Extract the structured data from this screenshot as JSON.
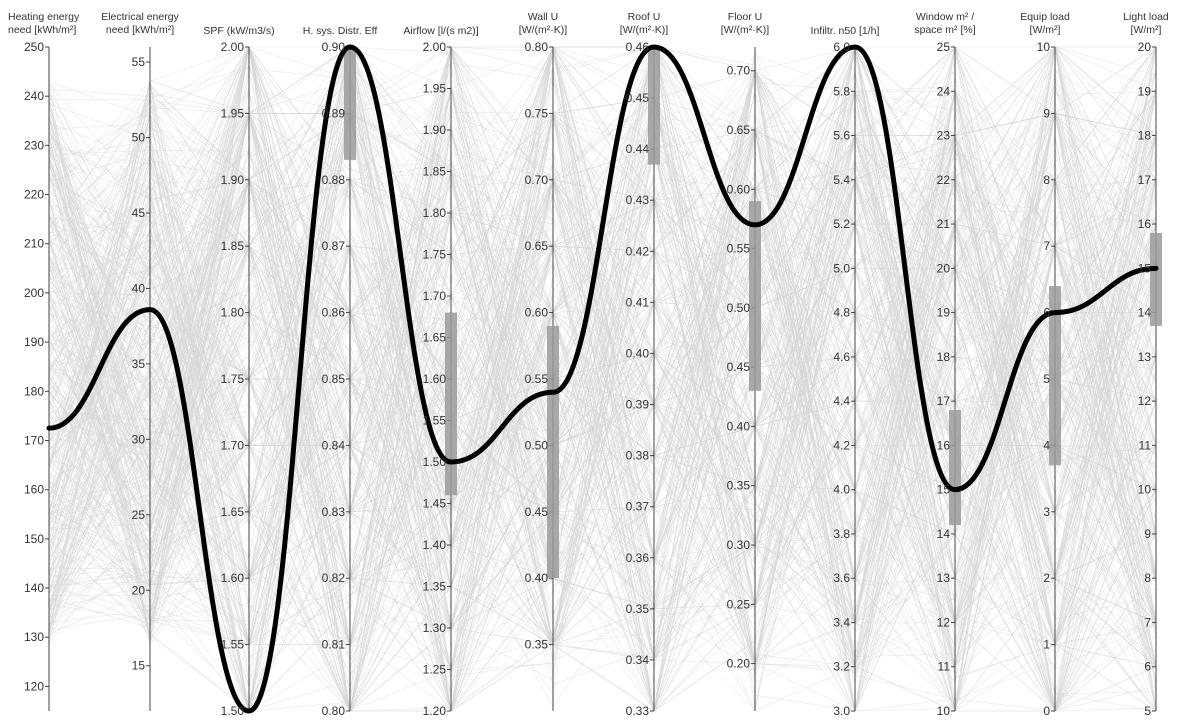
{
  "chart_data": {
    "type": "parallel_coordinates",
    "axes": [
      {
        "label": [
          "Heating energy",
          "need [kWh/m²]"
        ],
        "min": 115,
        "max": 250,
        "ticks": [
          120,
          130,
          140,
          150,
          160,
          170,
          180,
          190,
          200,
          210,
          220,
          230,
          240,
          250
        ],
        "labelSide": "left"
      },
      {
        "label": [
          "Electrical energy",
          "need [kWh/m²]"
        ],
        "min": 12,
        "max": 56,
        "ticks": [
          15,
          20,
          25,
          30,
          35,
          40,
          45,
          50,
          55
        ],
        "labelSide": "left"
      },
      {
        "label": [
          "SPF (kW/m3/s)"
        ],
        "min": 1.5,
        "max": 2.0,
        "ticks": [
          1.5,
          1.55,
          1.6,
          1.65,
          1.7,
          1.75,
          1.8,
          1.85,
          1.9,
          1.95,
          2.0
        ],
        "labelSide": "left",
        "decimals": 2
      },
      {
        "label": [
          "H. sys. Distr. Eff"
        ],
        "min": 0.8,
        "max": 0.9,
        "ticks": [
          0.8,
          0.81,
          0.82,
          0.83,
          0.84,
          0.85,
          0.86,
          0.87,
          0.88,
          0.89,
          0.9
        ],
        "labelSide": "left",
        "decimals": 2
      },
      {
        "label": [
          "Airflow [l/(s m2)]"
        ],
        "min": 1.2,
        "max": 2.0,
        "ticks": [
          1.2,
          1.25,
          1.3,
          1.35,
          1.4,
          1.45,
          1.5,
          1.55,
          1.6,
          1.65,
          1.7,
          1.75,
          1.8,
          1.85,
          1.9,
          1.95,
          2.0
        ],
        "labelSide": "left",
        "decimals": 2
      },
      {
        "label": [
          "Wall U",
          "[W/(m²·K)]"
        ],
        "min": 0.3,
        "max": 0.8,
        "ticks": [
          0.35,
          0.4,
          0.45,
          0.5,
          0.55,
          0.6,
          0.65,
          0.7,
          0.75,
          0.8
        ],
        "labelSide": "left",
        "decimals": 2
      },
      {
        "label": [
          "Roof U",
          "[W/(m²·K)]"
        ],
        "min": 0.33,
        "max": 0.46,
        "ticks": [
          0.33,
          0.34,
          0.35,
          0.36,
          0.37,
          0.38,
          0.39,
          0.4,
          0.41,
          0.42,
          0.43,
          0.44,
          0.45,
          0.46
        ],
        "labelSide": "left",
        "decimals": 2
      },
      {
        "label": [
          "Floor U",
          "[W/(m²·K)]"
        ],
        "min": 0.16,
        "max": 0.72,
        "ticks": [
          0.2,
          0.25,
          0.3,
          0.35,
          0.4,
          0.45,
          0.5,
          0.55,
          0.6,
          0.65,
          0.7
        ],
        "labelSide": "left",
        "decimals": 2
      },
      {
        "label": [
          "Infiltr. n50 [1/h]"
        ],
        "min": 3.0,
        "max": 6.0,
        "ticks": [
          3.0,
          3.2,
          3.4,
          3.6,
          3.8,
          4.0,
          4.2,
          4.4,
          4.6,
          4.8,
          5.0,
          5.2,
          5.4,
          5.6,
          5.8,
          6.0
        ],
        "labelSide": "left",
        "decimals": 1
      },
      {
        "label": [
          "Window m² /",
          "space m² [%]"
        ],
        "min": 10,
        "max": 25,
        "ticks": [
          10,
          11,
          12,
          13,
          14,
          15,
          16,
          17,
          18,
          19,
          20,
          21,
          22,
          23,
          24,
          25
        ],
        "labelSide": "left"
      },
      {
        "label": [
          "Equip load",
          "[W/m²]"
        ],
        "min": 0,
        "max": 10,
        "ticks": [
          0,
          1,
          2,
          3,
          4,
          5,
          6,
          7,
          8,
          9,
          10
        ],
        "labelSide": "left"
      },
      {
        "label": [
          "Light load",
          "[W/m²]"
        ],
        "min": 5,
        "max": 20,
        "ticks": [
          5,
          6,
          7,
          8,
          9,
          10,
          11,
          12,
          13,
          14,
          15,
          16,
          17,
          18,
          19,
          20
        ],
        "labelSide": "left"
      }
    ],
    "highlighted_solution": [
      172.5,
      38.6,
      1.5,
      0.9,
      1.5,
      0.54,
      0.46,
      0.57,
      6.0,
      15,
      6,
      15
    ],
    "uncertainty_ranges": [
      null,
      null,
      null,
      [
        0.883,
        0.9
      ],
      [
        1.46,
        1.68
      ],
      [
        0.4,
        0.59
      ],
      [
        0.437,
        0.46
      ],
      [
        0.43,
        0.59
      ],
      null,
      [
        14.2,
        16.8
      ],
      [
        3.7,
        6.4
      ],
      [
        13.7,
        15.8
      ]
    ],
    "background_line_count": 450,
    "colors": {
      "background_lines": "#d6d6d6",
      "highlight": "#000000",
      "range_box": "#9a9a9a",
      "axis": "#444444"
    }
  }
}
